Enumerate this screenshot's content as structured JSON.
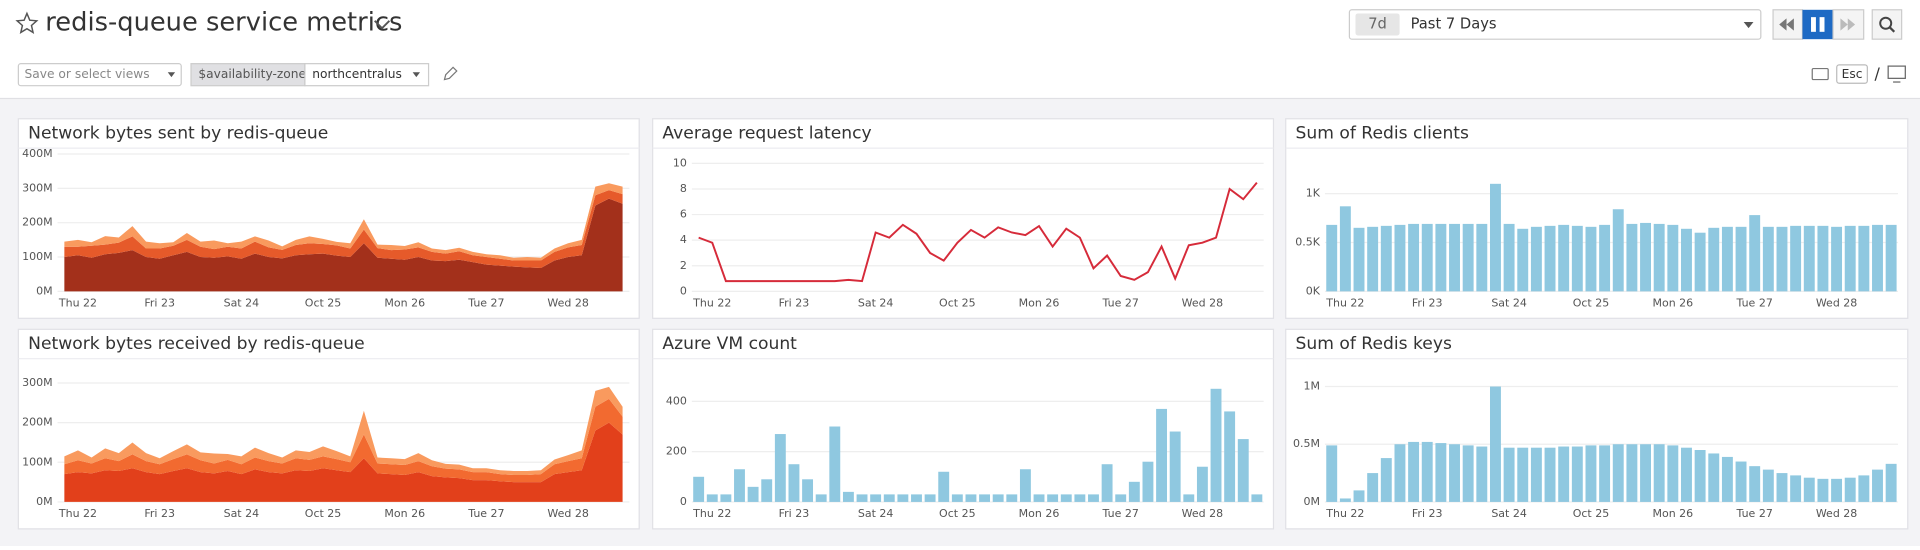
{
  "header": {
    "title": "redis-queue service metrics",
    "time_shortcut": "7d",
    "time_range": "Past 7 Days",
    "views_placeholder": "Save or select views",
    "variable_name": "$availability-zone",
    "variable_value": "northcentralus",
    "esc_key": "Esc",
    "slash": "/"
  },
  "chart_data": [
    {
      "type": "area",
      "stacked": true,
      "title": "Network bytes sent by redis-queue",
      "categories": [
        null,
        "Thu 22",
        null,
        null,
        null,
        null,
        null,
        "Fri 23",
        null,
        null,
        null,
        null,
        null,
        "Sat 24",
        null,
        null,
        null,
        null,
        null,
        "Oct 25",
        null,
        null,
        null,
        null,
        null,
        "Mon 26",
        null,
        null,
        null,
        null,
        null,
        "Tue 27",
        null,
        null,
        null,
        null,
        null,
        "Wed 28",
        null,
        null,
        null,
        null
      ],
      "series": [
        {
          "color": "#a3301b",
          "values": [
            100000000.0,
            105000000.0,
            98000000.0,
            108000000.0,
            112000000.0,
            120000000.0,
            100000000.0,
            95000000.0,
            105000000.0,
            115000000.0,
            100000000.0,
            98000000.0,
            102000000.0,
            95000000.0,
            110000000.0,
            100000000.0,
            96000000.0,
            105000000.0,
            108000000.0,
            110000000.0,
            104000000.0,
            100000000.0,
            140000000.0,
            98000000.0,
            95000000.0,
            92000000.0,
            100000000.0,
            90000000.0,
            88000000.0,
            92000000.0,
            85000000.0,
            78000000.0,
            75000000.0,
            72000000.0,
            70000000.0,
            68000000.0,
            90000000.0,
            100000000.0,
            105000000.0,
            250000000.0,
            270000000.0,
            255000000.0
          ]
        },
        {
          "color": "#e65a2a",
          "values": [
            30000000.0,
            25000000.0,
            35000000.0,
            28000000.0,
            30000000.0,
            40000000.0,
            25000000.0,
            30000000.0,
            28000000.0,
            35000000.0,
            30000000.0,
            25000000.0,
            28000000.0,
            30000000.0,
            35000000.0,
            28000000.0,
            25000000.0,
            30000000.0,
            32000000.0,
            28000000.0,
            30000000.0,
            25000000.0,
            40000000.0,
            28000000.0,
            25000000.0,
            30000000.0,
            28000000.0,
            25000000.0,
            22000000.0,
            25000000.0,
            20000000.0,
            22000000.0,
            20000000.0,
            18000000.0,
            20000000.0,
            22000000.0,
            25000000.0,
            28000000.0,
            30000000.0,
            30000000.0,
            25000000.0,
            28000000.0
          ]
        },
        {
          "color": "#f99a5e",
          "values": [
            15000000.0,
            20000000.0,
            10000000.0,
            25000000.0,
            15000000.0,
            30000000.0,
            20000000.0,
            15000000.0,
            10000000.0,
            20000000.0,
            15000000.0,
            25000000.0,
            10000000.0,
            20000000.0,
            15000000.0,
            20000000.0,
            10000000.0,
            15000000.0,
            20000000.0,
            15000000.0,
            10000000.0,
            15000000.0,
            30000000.0,
            10000000.0,
            15000000.0,
            10000000.0,
            15000000.0,
            10000000.0,
            10000000.0,
            10000000.0,
            10000000.0,
            8000000.0,
            10000000.0,
            8000000.0,
            10000000.0,
            8000000.0,
            10000000.0,
            12000000.0,
            15000000.0,
            25000000.0,
            20000000.0,
            22000000.0
          ]
        }
      ],
      "ylim": [
        0,
        410000000.0
      ],
      "yticks": [
        {
          "value": 0,
          "label": "0M"
        },
        {
          "value": 100000000.0,
          "label": "100M"
        },
        {
          "value": 200000000.0,
          "label": "200M"
        },
        {
          "value": 300000000.0,
          "label": "300M"
        },
        {
          "value": 400000000.0,
          "label": "400M"
        }
      ],
      "grid": true
    },
    {
      "type": "line",
      "title": "Average request latency",
      "categories": [
        null,
        "Thu 22",
        null,
        null,
        null,
        null,
        null,
        "Fri 23",
        null,
        null,
        null,
        null,
        null,
        "Sat 24",
        null,
        null,
        null,
        null,
        null,
        "Oct 25",
        null,
        null,
        null,
        null,
        null,
        "Mon 26",
        null,
        null,
        null,
        null,
        null,
        "Tue 27",
        null,
        null,
        null,
        null,
        null,
        "Wed 28",
        null,
        null,
        null,
        null
      ],
      "values": [
        4.2,
        3.8,
        0.8,
        0.8,
        0.8,
        0.8,
        0.8,
        0.8,
        0.8,
        0.8,
        0.8,
        0.9,
        0.8,
        4.6,
        4.2,
        5.2,
        4.5,
        3.0,
        2.4,
        3.8,
        4.8,
        4.2,
        5.0,
        4.6,
        4.4,
        5.1,
        3.5,
        4.9,
        4.2,
        1.8,
        2.8,
        1.2,
        0.9,
        1.5,
        3.5,
        1.0,
        3.6,
        3.8,
        4.2,
        8.0,
        7.2,
        8.5
      ],
      "color": "#d62b3a",
      "ylim": [
        0,
        11
      ],
      "yticks": [
        0,
        2,
        4,
        6,
        8,
        10
      ],
      "grid": true
    },
    {
      "type": "bar",
      "title": "Sum of Redis clients",
      "categories": [
        null,
        "Thu 22",
        null,
        null,
        null,
        null,
        null,
        "Fri 23",
        null,
        null,
        null,
        null,
        null,
        "Sat 24",
        null,
        null,
        null,
        null,
        null,
        "Oct 25",
        null,
        null,
        null,
        null,
        null,
        "Mon 26",
        null,
        null,
        null,
        null,
        null,
        "Tue 27",
        null,
        null,
        null,
        null,
        null,
        "Wed 28",
        null,
        null,
        null,
        null
      ],
      "values": [
        680,
        870,
        650,
        660,
        670,
        680,
        690,
        690,
        690,
        690,
        690,
        690,
        1100,
        690,
        640,
        660,
        670,
        680,
        670,
        660,
        680,
        840,
        690,
        700,
        690,
        680,
        640,
        600,
        650,
        660,
        660,
        780,
        660,
        660,
        670,
        670,
        670,
        660,
        670,
        670,
        680,
        680
      ],
      "color": "#8fc8e0",
      "ylim": [
        0,
        1440
      ],
      "yticks": [
        {
          "value": 0,
          "label": "0K"
        },
        {
          "value": 500,
          "label": "0.5K"
        },
        {
          "value": 1000,
          "label": "1K"
        }
      ],
      "grid": true
    },
    {
      "type": "area",
      "stacked": true,
      "title": "Network bytes received by redis-queue",
      "categories": [
        null,
        "Thu 22",
        null,
        null,
        null,
        null,
        null,
        "Fri 23",
        null,
        null,
        null,
        null,
        null,
        "Sat 24",
        null,
        null,
        null,
        null,
        null,
        "Oct 25",
        null,
        null,
        null,
        null,
        null,
        "Mon 26",
        null,
        null,
        null,
        null,
        null,
        "Tue 27",
        null,
        null,
        null,
        null,
        null,
        "Wed 28",
        null,
        null,
        null,
        null
      ],
      "series": [
        {
          "color": "#e2401b",
          "values": [
            70000000.0,
            75000000.0,
            72000000.0,
            80000000.0,
            78000000.0,
            85000000.0,
            75000000.0,
            70000000.0,
            78000000.0,
            85000000.0,
            75000000.0,
            72000000.0,
            78000000.0,
            70000000.0,
            82000000.0,
            75000000.0,
            72000000.0,
            80000000.0,
            78000000.0,
            85000000.0,
            80000000.0,
            75000000.0,
            110000000.0,
            72000000.0,
            70000000.0,
            68000000.0,
            75000000.0,
            65000000.0,
            62000000.0,
            60000000.0,
            55000000.0,
            55000000.0,
            52000000.0,
            50000000.0,
            50000000.0,
            50000000.0,
            70000000.0,
            75000000.0,
            80000000.0,
            180000000.0,
            200000000.0,
            170000000.0
          ]
        },
        {
          "color": "#f26a30",
          "values": [
            25000000.0,
            30000000.0,
            25000000.0,
            30000000.0,
            25000000.0,
            35000000.0,
            28000000.0,
            25000000.0,
            30000000.0,
            35000000.0,
            30000000.0,
            25000000.0,
            28000000.0,
            25000000.0,
            30000000.0,
            28000000.0,
            25000000.0,
            30000000.0,
            28000000.0,
            30000000.0,
            28000000.0,
            25000000.0,
            60000000.0,
            25000000.0,
            25000000.0,
            25000000.0,
            28000000.0,
            25000000.0,
            22000000.0,
            22000000.0,
            20000000.0,
            20000000.0,
            18000000.0,
            18000000.0,
            18000000.0,
            20000000.0,
            25000000.0,
            28000000.0,
            30000000.0,
            60000000.0,
            60000000.0,
            45000000.0
          ]
        },
        {
          "color": "#f99a5e",
          "values": [
            20000000.0,
            25000000.0,
            15000000.0,
            25000000.0,
            20000000.0,
            30000000.0,
            20000000.0,
            15000000.0,
            20000000.0,
            25000000.0,
            20000000.0,
            25000000.0,
            15000000.0,
            20000000.0,
            25000000.0,
            20000000.0,
            15000000.0,
            20000000.0,
            20000000.0,
            25000000.0,
            20000000.0,
            15000000.0,
            60000000.0,
            15000000.0,
            15000000.0,
            15000000.0,
            20000000.0,
            15000000.0,
            12000000.0,
            12000000.0,
            10000000.0,
            10000000.0,
            10000000.0,
            10000000.0,
            10000000.0,
            10000000.0,
            12000000.0,
            15000000.0,
            20000000.0,
            40000000.0,
            30000000.0,
            25000000.0
          ]
        }
      ],
      "ylim": [
        0,
        355000000.0
      ],
      "yticks": [
        {
          "value": 0,
          "label": "0M"
        },
        {
          "value": 100000000.0,
          "label": "100M"
        },
        {
          "value": 200000000.0,
          "label": "200M"
        },
        {
          "value": 300000000.0,
          "label": "300M"
        }
      ],
      "grid": true
    },
    {
      "type": "bar",
      "title": "Azure VM count",
      "categories": [
        null,
        "Thu 22",
        null,
        null,
        null,
        null,
        null,
        "Fri 23",
        null,
        null,
        null,
        null,
        null,
        "Sat 24",
        null,
        null,
        null,
        null,
        null,
        "Oct 25",
        null,
        null,
        null,
        null,
        null,
        "Mon 26",
        null,
        null,
        null,
        null,
        null,
        "Tue 27",
        null,
        null,
        null,
        null,
        null,
        "Wed 28",
        null,
        null,
        null,
        null
      ],
      "values": [
        100,
        30,
        30,
        130,
        60,
        90,
        270,
        150,
        90,
        30,
        300,
        40,
        30,
        30,
        30,
        30,
        30,
        30,
        120,
        30,
        30,
        30,
        30,
        30,
        130,
        30,
        30,
        30,
        30,
        30,
        150,
        30,
        80,
        160,
        370,
        280,
        30,
        140,
        450,
        360,
        250,
        30
      ],
      "color": "#8fc8e0",
      "ylim": [
        0,
        560
      ],
      "yticks": [
        0,
        200,
        400
      ],
      "grid": true
    },
    {
      "type": "bar",
      "title": "Sum of Redis keys",
      "categories": [
        null,
        "Thu 22",
        null,
        null,
        null,
        null,
        null,
        "Fri 23",
        null,
        null,
        null,
        null,
        null,
        "Sat 24",
        null,
        null,
        null,
        null,
        null,
        "Oct 25",
        null,
        null,
        null,
        null,
        null,
        "Mon 26",
        null,
        null,
        null,
        null,
        null,
        "Tue 27",
        null,
        null,
        null,
        null,
        null,
        "Wed 28",
        null,
        null,
        null,
        null
      ],
      "values": [
        490000.0,
        30000.0,
        100000.0,
        250000.0,
        380000.0,
        500000.0,
        520000.0,
        520000.0,
        510000.0,
        500000.0,
        490000.0,
        480000.0,
        1000000.0,
        470000.0,
        470000.0,
        470000.0,
        470000.0,
        480000.0,
        480000.0,
        490000.0,
        490000.0,
        500000.0,
        500000.0,
        500000.0,
        500000.0,
        490000.0,
        470000.0,
        450000.0,
        420000.0,
        390000.0,
        350000.0,
        310000.0,
        280000.0,
        250000.0,
        230000.0,
        210000.0,
        200000.0,
        200000.0,
        210000.0,
        230000.0,
        280000.0,
        330000.0
      ],
      "color": "#8fc8e0",
      "ylim": [
        0,
        1220000.0
      ],
      "yticks": [
        {
          "value": 0,
          "label": "0M"
        },
        {
          "value": 500000.0,
          "label": "0.5M"
        },
        {
          "value": 1000000.0,
          "label": "1M"
        }
      ],
      "grid": true
    }
  ]
}
